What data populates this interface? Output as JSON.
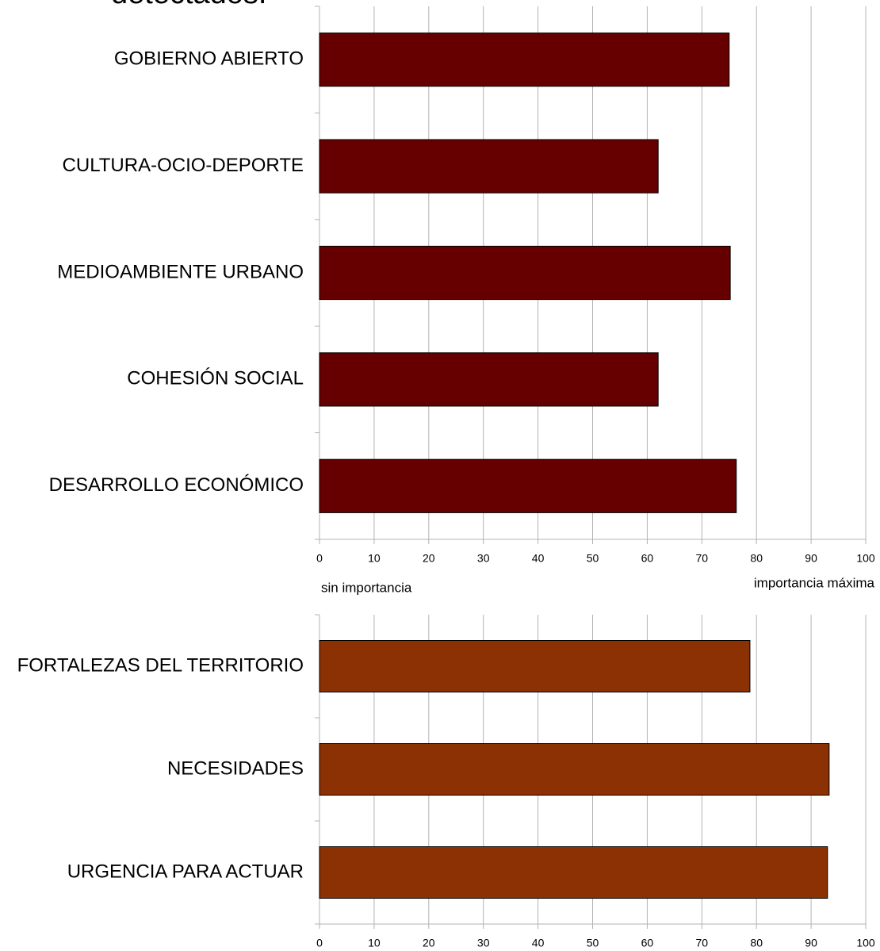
{
  "chart_data": [
    {
      "type": "barh",
      "title": "detectados.",
      "categories": [
        "GOBIERNO ABIERTO",
        "CULTURA-OCIO-DEPORTE",
        "MEDIOAMBIENTE URBANO",
        "COHESIÓN SOCIAL",
        "DESARROLLO ECONÓMICO"
      ],
      "values": [
        75,
        62,
        75.2,
        62,
        76.3
      ],
      "color": "#660000",
      "xlim": [
        0,
        100
      ],
      "xticks": [
        0,
        10,
        20,
        30,
        40,
        50,
        60,
        70,
        80,
        90,
        100
      ],
      "grid": true,
      "annotations": [
        "sin importancia",
        "importancia máxima"
      ]
    },
    {
      "type": "barh",
      "categories": [
        "FORTALEZAS DEL TERRITORIO",
        "NECESIDADES",
        "URGENCIA PARA ACTUAR"
      ],
      "values": [
        78.8,
        93.3,
        93
      ],
      "color": "#8b3103",
      "xlim": [
        0,
        100
      ],
      "xticks": [
        0,
        10,
        20,
        30,
        40,
        50,
        60,
        70,
        80,
        90,
        100
      ],
      "grid": true
    }
  ]
}
